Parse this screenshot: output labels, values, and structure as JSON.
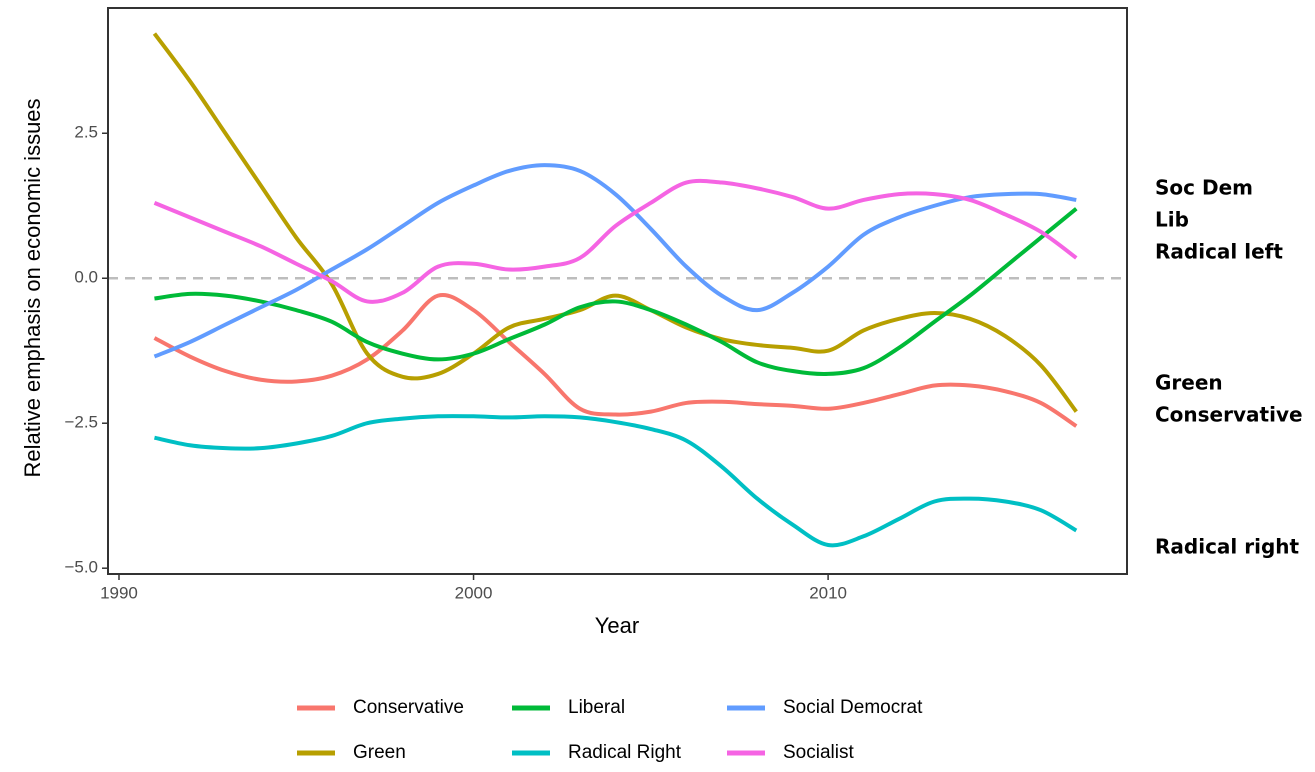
{
  "chart_data": {
    "type": "line",
    "x_label": "Year",
    "y_label": "Relative emphasis on economic issues",
    "x": [
      1991,
      1992,
      1993,
      1994,
      1995,
      1996,
      1997,
      1998,
      1999,
      2000,
      2001,
      2002,
      2003,
      2004,
      2005,
      2006,
      2007,
      2008,
      2009,
      2010,
      2011,
      2012,
      2013,
      2014,
      2015,
      2016,
      2017
    ],
    "series": [
      {
        "name": "Conservative",
        "color": "#F8766D",
        "values": [
          -1.03,
          -1.35,
          -1.6,
          -1.75,
          -1.78,
          -1.68,
          -1.4,
          -0.9,
          -0.3,
          -0.55,
          -1.1,
          -1.65,
          -2.25,
          -2.35,
          -2.3,
          -2.15,
          -2.13,
          -2.17,
          -2.2,
          -2.25,
          -2.15,
          -2.0,
          -1.85,
          -1.85,
          -1.95,
          -2.15,
          -2.55
        ]
      },
      {
        "name": "Green",
        "color": "#B79F00",
        "values": [
          4.22,
          3.4,
          2.5,
          1.6,
          0.7,
          -0.1,
          -1.3,
          -1.7,
          -1.65,
          -1.3,
          -0.85,
          -0.7,
          -0.55,
          -0.3,
          -0.55,
          -0.85,
          -1.05,
          -1.15,
          -1.2,
          -1.25,
          -0.9,
          -0.7,
          -0.6,
          -0.7,
          -1.0,
          -1.5,
          -2.3
        ]
      },
      {
        "name": "Liberal",
        "color": "#00BA38",
        "values": [
          -0.35,
          -0.27,
          -0.3,
          -0.4,
          -0.55,
          -0.75,
          -1.1,
          -1.3,
          -1.4,
          -1.3,
          -1.05,
          -0.8,
          -0.5,
          -0.4,
          -0.55,
          -0.8,
          -1.1,
          -1.45,
          -1.6,
          -1.65,
          -1.55,
          -1.2,
          -0.75,
          -0.3,
          0.2,
          0.7,
          1.2
        ]
      },
      {
        "name": "Radical Right",
        "color": "#00BFC4",
        "values": [
          -2.75,
          -2.88,
          -2.93,
          -2.93,
          -2.85,
          -2.72,
          -2.5,
          -2.42,
          -2.38,
          -2.38,
          -2.4,
          -2.38,
          -2.4,
          -2.48,
          -2.6,
          -2.8,
          -3.25,
          -3.8,
          -4.25,
          -4.6,
          -4.45,
          -4.15,
          -3.85,
          -3.8,
          -3.85,
          -4.0,
          -4.35
        ]
      },
      {
        "name": "Social Democrat",
        "color": "#619CFF",
        "values": [
          -1.35,
          -1.1,
          -0.8,
          -0.5,
          -0.2,
          0.15,
          0.5,
          0.9,
          1.3,
          1.6,
          1.85,
          1.95,
          1.85,
          1.45,
          0.85,
          0.2,
          -0.3,
          -0.55,
          -0.25,
          0.2,
          0.75,
          1.05,
          1.25,
          1.4,
          1.45,
          1.45,
          1.35
        ]
      },
      {
        "name": "Socialist",
        "color": "#F564E3",
        "values": [
          1.3,
          1.05,
          0.8,
          0.55,
          0.25,
          -0.05,
          -0.4,
          -0.25,
          0.2,
          0.25,
          0.15,
          0.2,
          0.35,
          0.9,
          1.3,
          1.65,
          1.65,
          1.55,
          1.4,
          1.2,
          1.35,
          1.45,
          1.45,
          1.35,
          1.1,
          0.8,
          0.35
        ]
      }
    ],
    "xlim": [
      1989.69,
      2018.43
    ],
    "ylim": [
      -5.1,
      4.66
    ],
    "xticks": [
      1990,
      2000,
      2010
    ],
    "yticks": [
      2.5,
      {
        "value": 0,
        "label": "0.0"
      },
      {
        "value": -2.5,
        "label": "−2.5"
      },
      {
        "value": -5,
        "label": "−5.0"
      }
    ],
    "hline": 0,
    "annotations": [
      "Soc Dem",
      "Lib",
      "Radical left",
      "Green",
      "Conservative",
      "Radical right"
    ]
  }
}
